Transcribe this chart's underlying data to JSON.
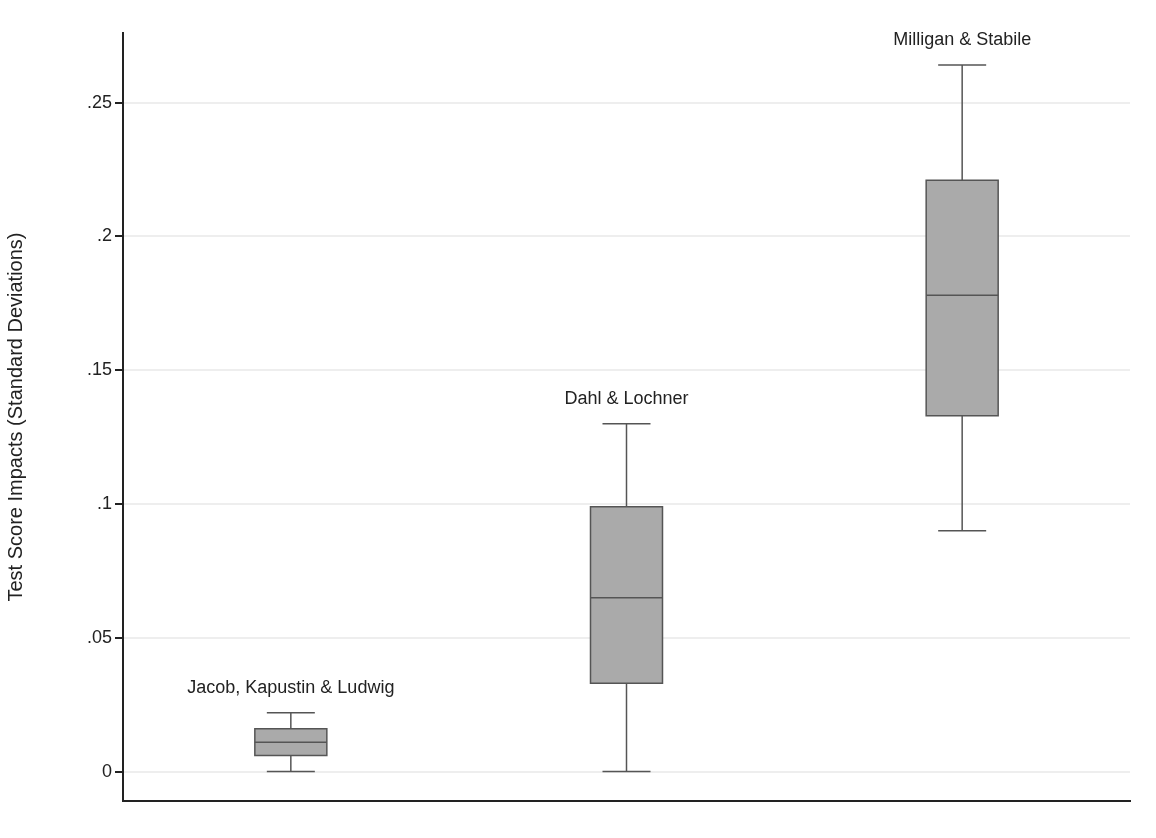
{
  "chart_data": {
    "type": "box",
    "ylabel": "Test Score Impacts (Standard Deviations)",
    "categories": [
      "Jacob, Kapustin & Ludwig",
      "Dahl & Lochner",
      "Milligan & Stabile"
    ],
    "boxes": [
      {
        "low": 0,
        "q1": 0.006,
        "median": 0.011,
        "q3": 0.016,
        "high": 0.022
      },
      {
        "low": 0,
        "q1": 0.033,
        "median": 0.065,
        "q3": 0.099,
        "high": 0.13
      },
      {
        "low": 0.09,
        "q1": 0.133,
        "median": 0.178,
        "q3": 0.221,
        "high": 0.264
      }
    ],
    "color": "#aaaaaa",
    "ylim": [
      -0.011,
      0.276
    ],
    "yticks": [
      0,
      {
        "value": 0.05,
        "label": ".05"
      },
      {
        "value": 0.1,
        "label": ".1"
      },
      {
        "value": 0.15,
        "label": ".15"
      },
      {
        "value": 0.2,
        "label": ".2"
      },
      {
        "value": 0.25,
        "label": ".25"
      }
    ],
    "grid": "y",
    "tick_labels": "y"
  }
}
